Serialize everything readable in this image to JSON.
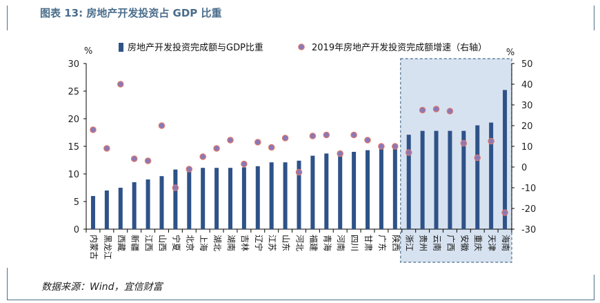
{
  "header": {
    "title": "图表 13: 房地产开发投资占 GDP 比重"
  },
  "footer": {
    "source": "数据来源：Wind，宜信财富"
  },
  "colors": {
    "bar": "#2e5288",
    "dot_fill": "#8a78b8",
    "dot_stroke": "#e07a6a",
    "highlight_bg": "#d7e2f0",
    "highlight_border": "#4a6d8c"
  },
  "chart_data": {
    "type": "bar",
    "legend_placement": "top",
    "categories": [
      "内蒙古",
      "黑龙江",
      "西藏",
      "新疆",
      "江西",
      "山西",
      "宁夏",
      "北京",
      "上海",
      "湖北",
      "湖南",
      "吉林",
      "辽宁",
      "江苏",
      "山东",
      "河北",
      "福建",
      "青海",
      "河南",
      "四川",
      "甘肃",
      "广东",
      "陕西",
      "浙江",
      "贵州",
      "云南",
      "广西",
      "安徽",
      "重庆",
      "天津",
      "海南"
    ],
    "series": [
      {
        "name": "房地产开发投资完成额与GDP比重",
        "type": "bar",
        "axis": "left",
        "values": [
          6.0,
          7.0,
          7.5,
          8.5,
          9.0,
          9.6,
          10.8,
          10.8,
          11.1,
          11.1,
          11.1,
          11.2,
          11.4,
          12.1,
          12.1,
          12.4,
          13.3,
          13.7,
          13.8,
          14.0,
          14.3,
          15.0,
          15.2,
          17.1,
          17.8,
          17.8,
          17.8,
          17.8,
          18.8,
          19.3,
          25.2
        ]
      },
      {
        "name": "2019年房地产开发投资完成额增速（右轴）",
        "type": "scatter",
        "axis": "right",
        "values": [
          18.0,
          9.0,
          40.0,
          4.0,
          3.0,
          20.0,
          -10.0,
          -1.0,
          5.0,
          9.0,
          13.0,
          1.5,
          12.0,
          9.5,
          14.0,
          -2.5,
          15.0,
          15.5,
          6.5,
          15.5,
          13.0,
          10.0,
          10.0,
          7.0,
          27.5,
          28.0,
          27.0,
          11.5,
          4.5,
          12.5,
          -22.0
        ]
      }
    ],
    "left_axis": {
      "label": "%",
      "min": 0,
      "max": 30,
      "ticks": [
        0,
        5,
        10,
        15,
        20,
        25,
        30
      ]
    },
    "right_axis": {
      "label": "%",
      "min": -30,
      "max": 50,
      "ticks": [
        -30,
        -20,
        -10,
        0,
        10,
        20,
        30,
        40,
        50
      ]
    },
    "highlight_range": [
      "浙江",
      "海南"
    ]
  }
}
